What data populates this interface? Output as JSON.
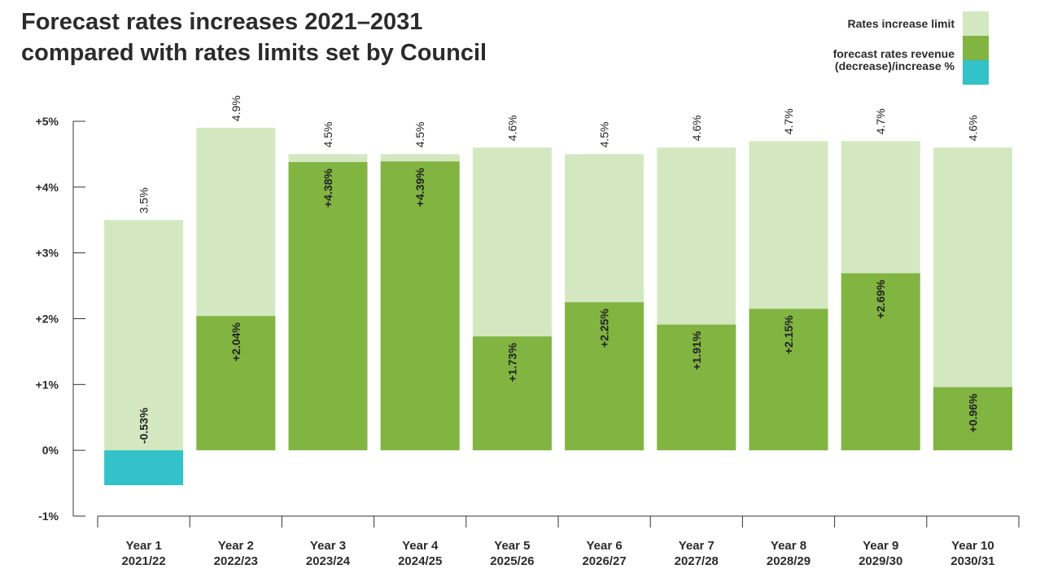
{
  "title": {
    "line1": "Forecast rates increases 2021–2031",
    "line2": "compared with rates limits set by Council"
  },
  "legend": {
    "limit_label": "Rates increase limit",
    "forecast_label_line1": "forecast rates revenue",
    "forecast_label_line2": "(decrease)/increase %"
  },
  "colors": {
    "limit": "#d3e8c0",
    "increase": "#81b441",
    "decrease": "#33c1ca",
    "axis": "#333333"
  },
  "chart_data": {
    "type": "bar",
    "title": "Forecast rates increases 2021–2031 compared with rates limits set by Council",
    "ylim": [
      -1,
      5
    ],
    "yticks": [
      -1,
      0,
      1,
      2,
      3,
      4,
      5
    ],
    "ytick_labels": [
      "-1%",
      "0%",
      "+1%",
      "+2%",
      "+3%",
      "+4%",
      "+5%"
    ],
    "categories": [
      "Year 1",
      "Year 2",
      "Year 3",
      "Year 4",
      "Year 5",
      "Year 6",
      "Year 7",
      "Year 8",
      "Year 9",
      "Year 10"
    ],
    "category_sublabels": [
      "2021/22",
      "2022/23",
      "2023/24",
      "2024/25",
      "2025/26",
      "2026/27",
      "2027/28",
      "2028/29",
      "2029/30",
      "2030/31"
    ],
    "series": [
      {
        "name": "Rates increase limit",
        "values": [
          3.5,
          4.9,
          4.5,
          4.5,
          4.6,
          4.5,
          4.6,
          4.7,
          4.7,
          4.6
        ],
        "labels": [
          "3.5%",
          "4.9%",
          "4.5%",
          "4.5%",
          "4.6%",
          "4.5%",
          "4.6%",
          "4.7%",
          "4.7%",
          "4.6%"
        ]
      },
      {
        "name": "forecast rates revenue (decrease)/increase %",
        "values": [
          -0.53,
          2.04,
          4.38,
          4.39,
          1.73,
          2.25,
          1.91,
          2.15,
          2.69,
          0.96
        ],
        "labels": [
          "-0.53%",
          "+2.04%",
          "+4.38%",
          "+4.39%",
          "+1.73%",
          "+2.25%",
          "+1.91%",
          "+2.15%",
          "+2.69%",
          "+0.96%"
        ]
      }
    ],
    "legend_position": "top-right",
    "grid": false
  }
}
